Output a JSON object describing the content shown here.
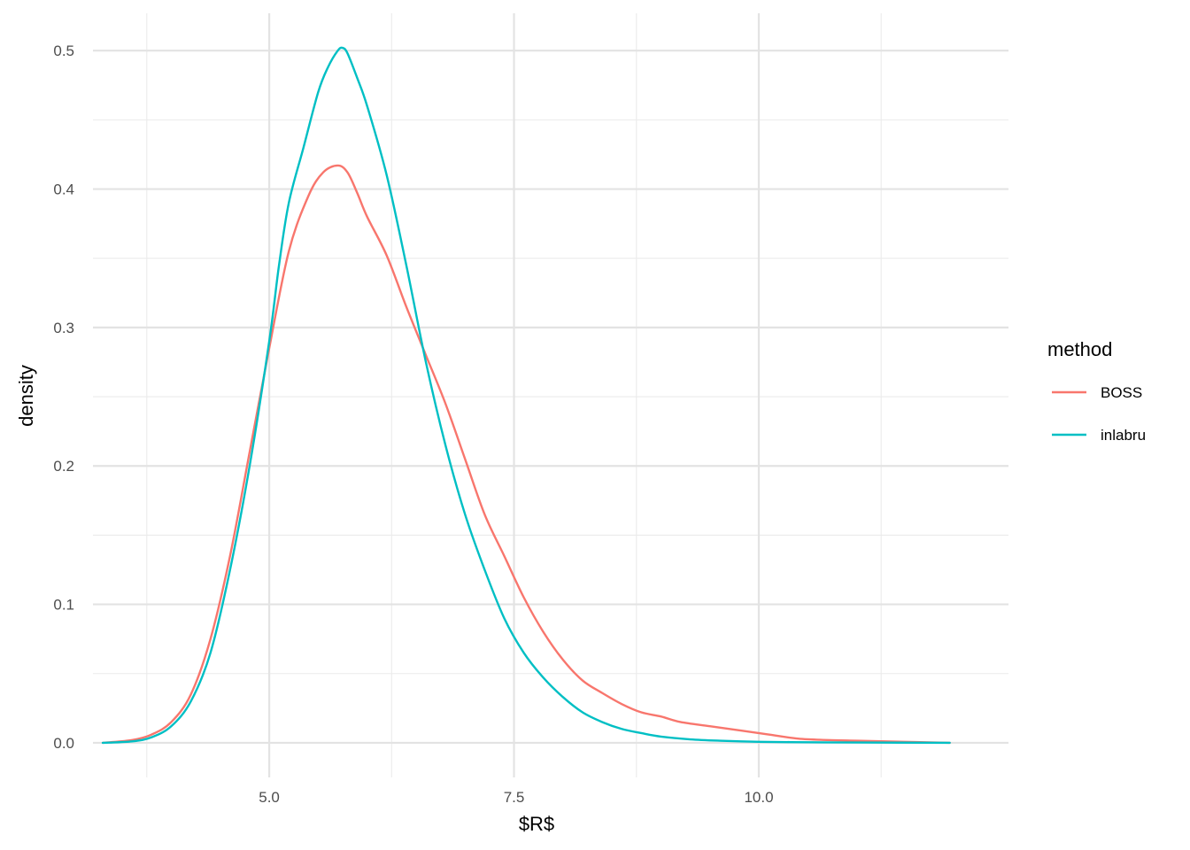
{
  "chart_data": {
    "type": "line",
    "title": "",
    "xlabel": "$R$",
    "ylabel": "density",
    "xlim": [
      3.2,
      12.55
    ],
    "ylim": [
      -0.025,
      0.527
    ],
    "x_ticks": [
      5.0,
      7.5,
      10.0
    ],
    "x_tick_labels": [
      "5.0",
      "7.5",
      "10.0"
    ],
    "x_minor_ticks": [
      3.75,
      6.25,
      8.75,
      11.25
    ],
    "y_ticks": [
      0.0,
      0.1,
      0.2,
      0.3,
      0.4,
      0.5
    ],
    "y_tick_labels": [
      "0.0",
      "0.1",
      "0.2",
      "0.3",
      "0.4",
      "0.5"
    ],
    "y_minor_ticks": [
      0.05,
      0.15,
      0.25,
      0.35,
      0.45
    ],
    "grid": true,
    "legend": {
      "title": "method",
      "position": "right"
    },
    "series": [
      {
        "name": "BOSS",
        "color": "#F8766D",
        "points": [
          [
            3.3,
            0.0
          ],
          [
            3.6,
            0.002
          ],
          [
            3.8,
            0.006
          ],
          [
            4.0,
            0.015
          ],
          [
            4.2,
            0.035
          ],
          [
            4.4,
            0.075
          ],
          [
            4.6,
            0.135
          ],
          [
            4.8,
            0.21
          ],
          [
            5.0,
            0.285
          ],
          [
            5.2,
            0.355
          ],
          [
            5.4,
            0.395
          ],
          [
            5.55,
            0.412
          ],
          [
            5.7,
            0.417
          ],
          [
            5.8,
            0.412
          ],
          [
            5.9,
            0.397
          ],
          [
            6.0,
            0.38
          ],
          [
            6.2,
            0.352
          ],
          [
            6.4,
            0.315
          ],
          [
            6.6,
            0.28
          ],
          [
            6.8,
            0.245
          ],
          [
            7.0,
            0.205
          ],
          [
            7.2,
            0.165
          ],
          [
            7.4,
            0.135
          ],
          [
            7.6,
            0.105
          ],
          [
            7.8,
            0.08
          ],
          [
            8.0,
            0.06
          ],
          [
            8.2,
            0.045
          ],
          [
            8.4,
            0.036
          ],
          [
            8.6,
            0.028
          ],
          [
            8.8,
            0.022
          ],
          [
            9.0,
            0.019
          ],
          [
            9.2,
            0.015
          ],
          [
            9.5,
            0.012
          ],
          [
            9.8,
            0.009
          ],
          [
            10.1,
            0.006
          ],
          [
            10.4,
            0.003
          ],
          [
            10.7,
            0.002
          ],
          [
            11.0,
            0.0015
          ],
          [
            11.3,
            0.001
          ],
          [
            11.6,
            0.0005
          ],
          [
            11.95,
            0.0
          ]
        ]
      },
      {
        "name": "inlabru",
        "color": "#00BFC4",
        "points": [
          [
            3.3,
            0.0
          ],
          [
            3.6,
            0.001
          ],
          [
            3.8,
            0.004
          ],
          [
            4.0,
            0.012
          ],
          [
            4.2,
            0.03
          ],
          [
            4.4,
            0.065
          ],
          [
            4.6,
            0.125
          ],
          [
            4.8,
            0.2
          ],
          [
            5.0,
            0.29
          ],
          [
            5.1,
            0.345
          ],
          [
            5.2,
            0.39
          ],
          [
            5.35,
            0.43
          ],
          [
            5.5,
            0.47
          ],
          [
            5.6,
            0.488
          ],
          [
            5.7,
            0.5
          ],
          [
            5.75,
            0.502
          ],
          [
            5.8,
            0.498
          ],
          [
            5.9,
            0.48
          ],
          [
            6.0,
            0.46
          ],
          [
            6.2,
            0.41
          ],
          [
            6.4,
            0.345
          ],
          [
            6.6,
            0.275
          ],
          [
            6.8,
            0.215
          ],
          [
            7.0,
            0.165
          ],
          [
            7.2,
            0.125
          ],
          [
            7.4,
            0.09
          ],
          [
            7.6,
            0.065
          ],
          [
            7.8,
            0.047
          ],
          [
            8.0,
            0.033
          ],
          [
            8.2,
            0.022
          ],
          [
            8.4,
            0.015
          ],
          [
            8.6,
            0.01
          ],
          [
            8.8,
            0.007
          ],
          [
            9.0,
            0.0045
          ],
          [
            9.3,
            0.0025
          ],
          [
            9.6,
            0.0015
          ],
          [
            10.0,
            0.0007
          ],
          [
            10.5,
            0.0004
          ],
          [
            11.0,
            0.0002
          ],
          [
            11.95,
            0.0
          ]
        ]
      }
    ]
  }
}
